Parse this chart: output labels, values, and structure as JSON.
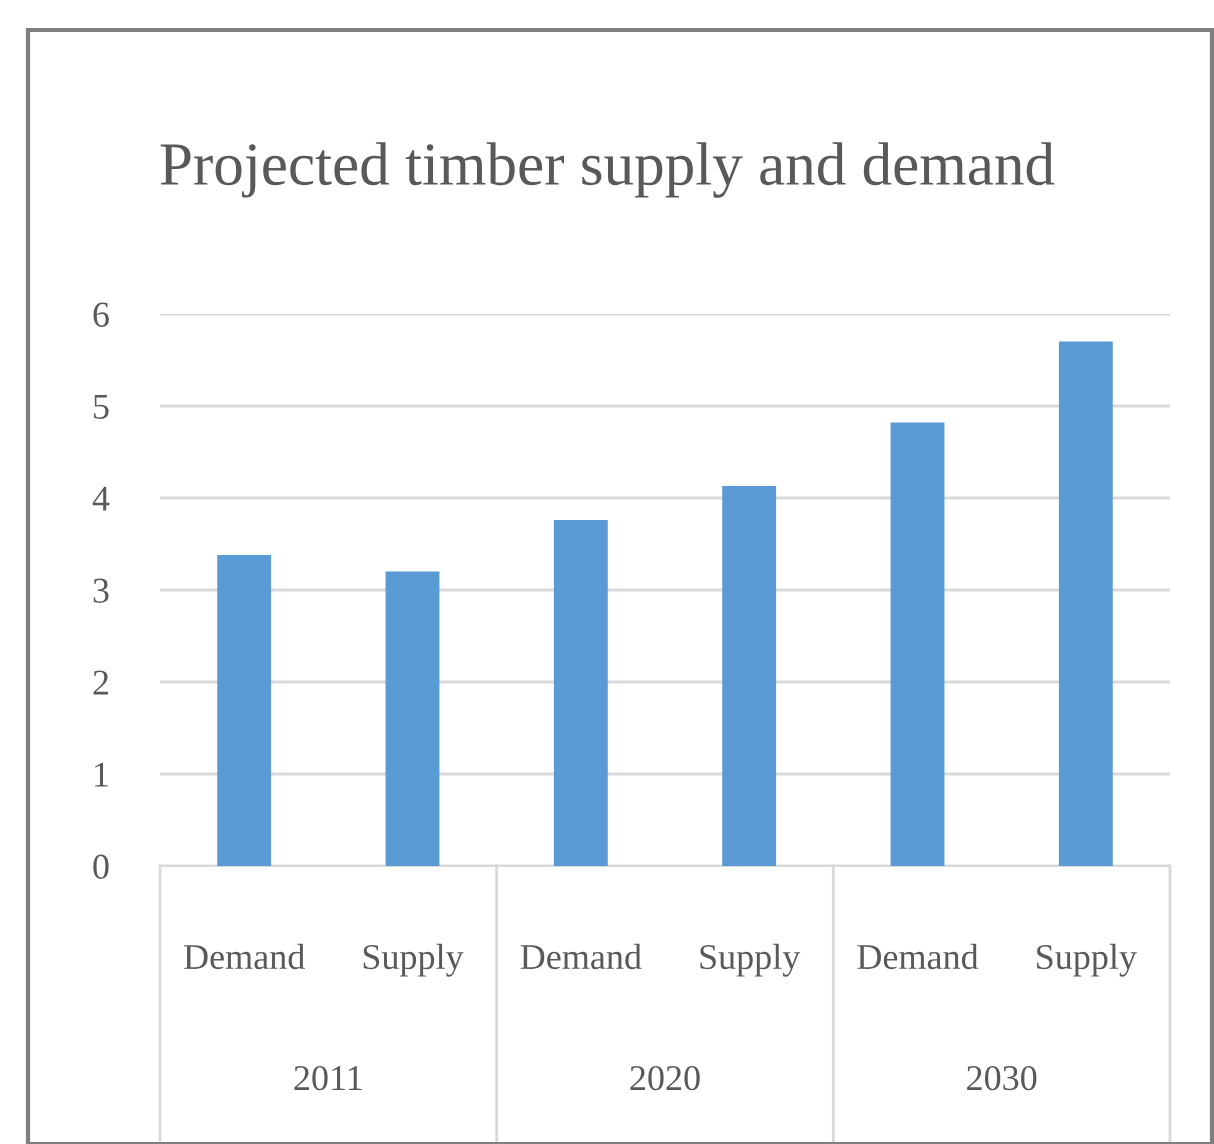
{
  "chart_data": {
    "type": "bar",
    "title": "Projected timber supply and demand",
    "categories": [
      "Demand",
      "Supply",
      "Demand",
      "Supply",
      "Demand",
      "Supply"
    ],
    "values": [
      3.38,
      3.2,
      3.76,
      4.13,
      4.82,
      5.7
    ],
    "color": "#5b9bd5",
    "annotations": [
      "2011",
      "2020",
      "2030"
    ],
    "ylim": [
      0,
      6
    ],
    "yticks": [
      0,
      1,
      2,
      3,
      4,
      5,
      6
    ],
    "grid": "y",
    "legend": false
  }
}
